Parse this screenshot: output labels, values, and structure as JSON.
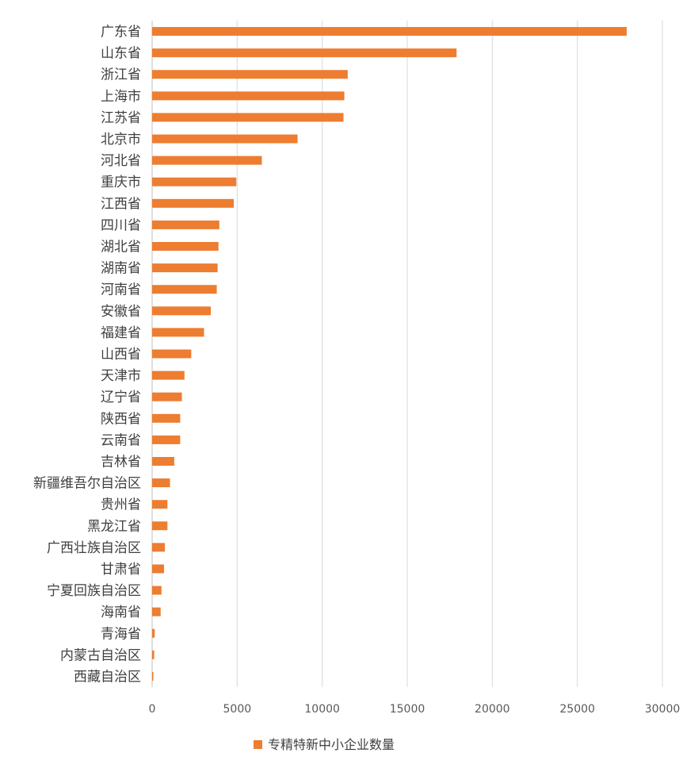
{
  "chart_data": {
    "type": "bar",
    "orientation": "horizontal",
    "categories": [
      "广东省",
      "山东省",
      "浙江省",
      "上海市",
      "江苏省",
      "北京市",
      "河北省",
      "重庆市",
      "江西省",
      "四川省",
      "湖北省",
      "湖南省",
      "河南省",
      "安徽省",
      "福建省",
      "山西省",
      "天津市",
      "辽宁省",
      "陕西省",
      "云南省",
      "吉林省",
      "新疆维吾尔自治区",
      "贵州省",
      "黑龙江省",
      "广西壮族自治区",
      "甘肃省",
      "宁夏回族自治区",
      "海南省",
      "青海省",
      "内蒙古自治区",
      "西藏自治区"
    ],
    "series": [
      {
        "name": "专精特新中小企业数量",
        "color": "#ed7d31",
        "values": [
          27900,
          17900,
          11500,
          11300,
          11250,
          8550,
          6450,
          4950,
          4800,
          3950,
          3900,
          3850,
          3800,
          3450,
          3050,
          2300,
          1900,
          1750,
          1650,
          1650,
          1300,
          1050,
          900,
          900,
          750,
          700,
          550,
          500,
          150,
          120,
          50
        ]
      }
    ],
    "xlim": [
      0,
      30000
    ],
    "xticks": [
      "0",
      "5000",
      "10000",
      "15000",
      "20000",
      "25000",
      "30000"
    ],
    "grid": true,
    "legend": "bottom"
  }
}
